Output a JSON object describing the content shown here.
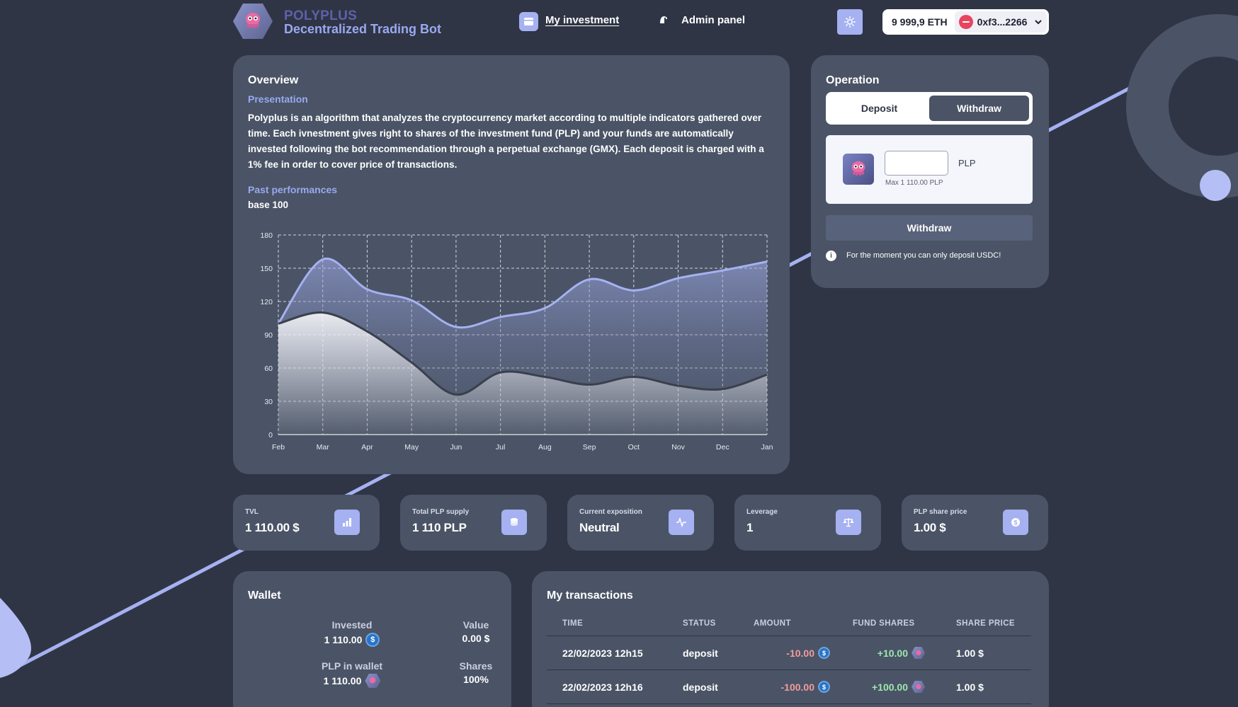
{
  "header": {
    "brand_name": "POLYPLUS",
    "brand_subtitle": "Decentralized Trading Bot",
    "nav": [
      {
        "label": "My investment",
        "active": true
      },
      {
        "label": "Admin panel",
        "active": false
      }
    ],
    "eth_balance": "9 999,9 ETH",
    "address": "0xf3...2266"
  },
  "overview": {
    "title": "Overview",
    "presentation_label": "Presentation",
    "presentation_text": "Polyplus is an algorithm that analyzes the cryptocurrency market according to multiple indicators gathered over time. Each ivnestment gives right to shares of the investment fund (PLP) and your funds are automatically invested following the bot recommendation through a perpetual exchange (GMX). Each deposit is charged with a 1% fee in order to cover price of transactions.",
    "past_performances_label": "Past performances",
    "base_label": "base 100"
  },
  "chart_data": {
    "type": "area",
    "categories": [
      "Feb",
      "Mar",
      "Apr",
      "May",
      "Jun",
      "Jul",
      "Aug",
      "Sep",
      "Oct",
      "Nov",
      "Dec",
      "Jan"
    ],
    "ylim": [
      0,
      180
    ],
    "yticks": [
      0,
      30,
      60,
      90,
      120,
      150,
      180
    ],
    "grid": true,
    "series": [
      {
        "values": [
          100,
          158,
          131,
          121,
          97,
          106,
          114,
          140,
          130,
          141,
          148,
          156
        ],
        "color": "#a6b1f2"
      },
      {
        "values": [
          100,
          110,
          93,
          65,
          36,
          56,
          52,
          45,
          52,
          44,
          41,
          54
        ],
        "color": "#3a3f4c"
      }
    ]
  },
  "operation": {
    "title": "Operation",
    "tabs": [
      "Deposit",
      "Withdraw"
    ],
    "active_tab": "Withdraw",
    "input_value": "",
    "max_label": "Max 1 110.00 PLP",
    "unit": "PLP",
    "button_label": "Withdraw",
    "info_text": "For the moment you can only deposit USDC!"
  },
  "stats": [
    {
      "label": "TVL",
      "value": "1 110.00 $",
      "icon": "bar-chart-icon"
    },
    {
      "label": "Total PLP supply",
      "value": "1 110 PLP",
      "icon": "coins-icon"
    },
    {
      "label": "Current exposition",
      "value": "Neutral",
      "icon": "activity-icon"
    },
    {
      "label": "Leverage",
      "value": "1",
      "icon": "scale-icon"
    },
    {
      "label": "PLP share price",
      "value": "1.00 $",
      "icon": "dollar-coin-icon"
    }
  ],
  "wallet": {
    "title": "Wallet",
    "invested_label": "Invested",
    "invested_value": "1 110.00",
    "value_label": "Value",
    "value_value": "0.00 $",
    "plp_label": "PLP in wallet",
    "plp_value": "1 110.00",
    "shares_label": "Shares",
    "shares_value": "100%"
  },
  "transactions": {
    "title": "My transactions",
    "columns": [
      "TIME",
      "STATUS",
      "AMOUNT",
      "FUND SHARES",
      "SHARE PRICE"
    ],
    "rows": [
      {
        "time": "22/02/2023 12h15",
        "status": "deposit",
        "amount": "-10.00",
        "shares": "+10.00",
        "price": "1.00 $"
      },
      {
        "time": "22/02/2023 12h16",
        "status": "deposit",
        "amount": "-100.00",
        "shares": "+100.00",
        "price": "1.00 $"
      }
    ]
  },
  "colors": {
    "background": "#2f3545",
    "card": "#4a5466",
    "accent": "#a6b1f2",
    "brand": "#5d61a8"
  }
}
